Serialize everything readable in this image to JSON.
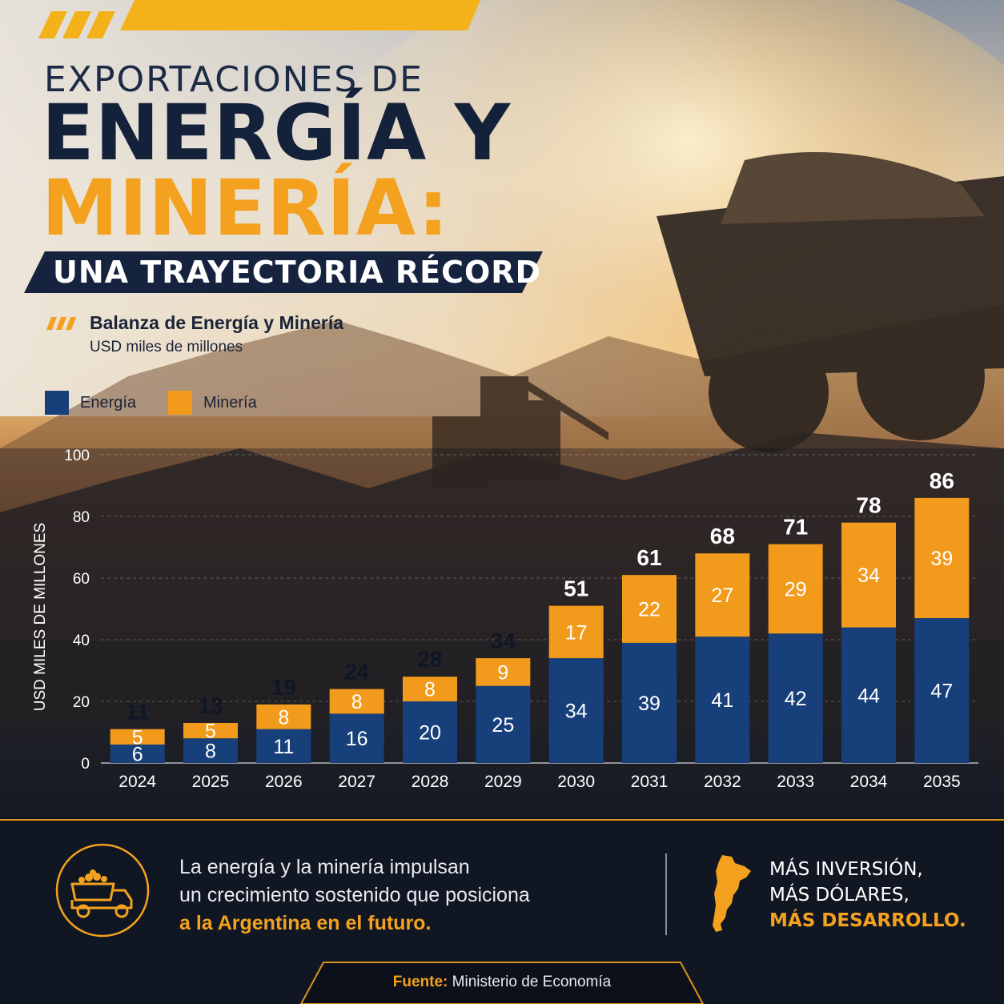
{
  "title": {
    "line1": "EXPORTACIONES DE",
    "line2": "ENERGÍA Y",
    "line3": "MINERÍA:",
    "banner": "UNA TRAYECTORIA RÉCORD"
  },
  "subtitle": {
    "title": "Balanza de Energía y Minería",
    "unit": "USD miles de millones"
  },
  "colors": {
    "energia": "#17407a",
    "mineria": "#f29a1c",
    "accent": "#f3a11e",
    "navy": "#14213b"
  },
  "chart_data": {
    "type": "bar",
    "stacked": true,
    "categories": [
      "2024",
      "2025",
      "2026",
      "2027",
      "2028",
      "2029",
      "2030",
      "2031",
      "2032",
      "2033",
      "2034",
      "2035"
    ],
    "series": [
      {
        "name": "Energía",
        "values": [
          6,
          8,
          11,
          16,
          20,
          25,
          34,
          39,
          41,
          42,
          44,
          47
        ]
      },
      {
        "name": "Minería",
        "values": [
          5,
          5,
          8,
          8,
          8,
          9,
          17,
          22,
          27,
          29,
          34,
          39
        ]
      }
    ],
    "totals": [
      11,
      13,
      19,
      24,
      28,
      34,
      51,
      61,
      68,
      71,
      78,
      86
    ],
    "ylabel": "USD MILES DE MILLONES",
    "ylim": [
      0,
      100
    ],
    "yticks": [
      "0",
      "20",
      "40",
      "60",
      "80",
      "100"
    ],
    "legend": "top-left",
    "grid": true
  },
  "bottom": {
    "line1": "La energía y la minería impulsan",
    "line2": "un crecimiento sostenido que posiciona",
    "line3": "a la Argentina en el futuro.",
    "right1": "MÁS INVERSIÓN,",
    "right2": "MÁS DÓLARES,",
    "right3": "MÁS DESARROLLO.",
    "truck_icon": "dump-truck-icon",
    "map_icon": "argentina-map-icon"
  },
  "source": {
    "label": "Fuente:",
    "text": "Ministerio de Economía"
  }
}
